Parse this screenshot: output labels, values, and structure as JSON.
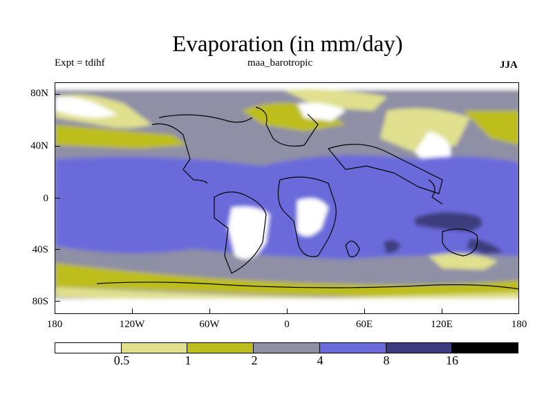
{
  "title": "Evaporation (in mm/day)",
  "experiment_label": "Expt = tdihf",
  "run_label": "maa_barotropic",
  "season_label": "JJA",
  "y_axis": {
    "labels": [
      "80N",
      "40N",
      "0",
      "40S",
      "80S"
    ],
    "latitudes": [
      80,
      40,
      0,
      -40,
      -80
    ],
    "range": [
      -90,
      90
    ]
  },
  "x_axis": {
    "labels": [
      "180",
      "120W",
      "60W",
      "0",
      "60E",
      "120E",
      "180"
    ],
    "longitudes": [
      -180,
      -120,
      -60,
      0,
      60,
      120,
      180
    ],
    "range": [
      -180,
      180
    ]
  },
  "colorbar": {
    "colors": [
      "#ffffff",
      "#e0e08e",
      "#bdbd1f",
      "#8f8fa6",
      "#6b6bdb",
      "#3c3c7e",
      "#000000"
    ],
    "labels": [
      "0.5",
      "1",
      "2",
      "4",
      "8",
      "16"
    ]
  },
  "colors": {
    "coastline": "#000000",
    "background": "#ffffff"
  }
}
